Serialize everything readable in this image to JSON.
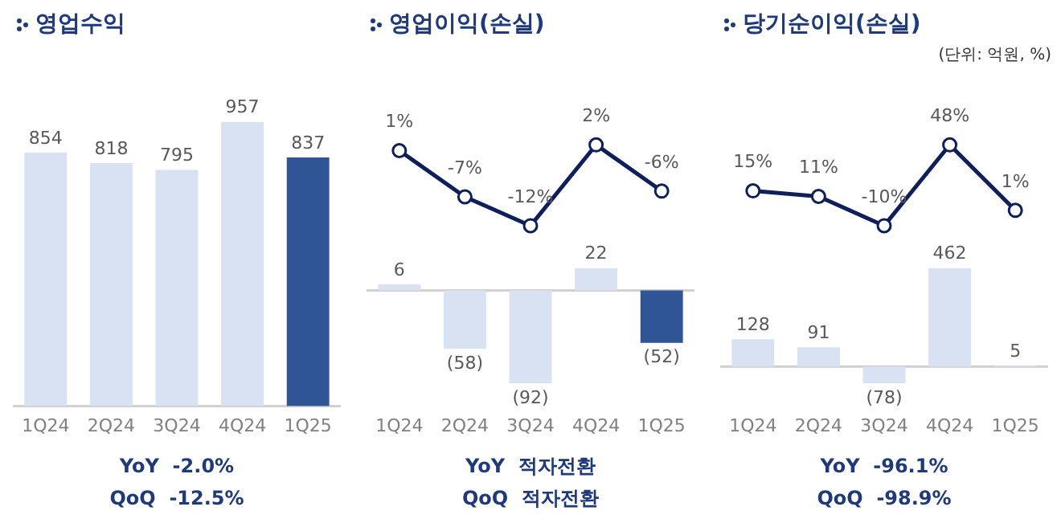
{
  "chart_data": [
    {
      "type": "bar",
      "title": "영업수익",
      "categories": [
        "1Q24",
        "2Q24",
        "3Q24",
        "4Q24",
        "1Q25"
      ],
      "tick_labels": "x",
      "values": [
        854,
        818,
        795,
        957,
        837
      ],
      "colors": [
        "#d9e2f3",
        "#d9e2f3",
        "#d9e2f3",
        "#d9e2f3",
        "#2f5597"
      ],
      "value_labels": [
        "854",
        "818",
        "795",
        "957",
        "837"
      ],
      "annotations": [
        "YoY  -2.0%",
        "QoQ  -12.5%"
      ]
    },
    {
      "type": "line",
      "title": "영업이익(손실)",
      "categories": [
        null,
        null,
        null,
        null,
        null
      ],
      "tick_labels": false,
      "marker": "circle",
      "color": "#0e1f5b",
      "values": [
        1,
        -7,
        -12,
        2,
        -6
      ],
      "value_labels": [
        "1%",
        "-7%",
        "-12%",
        "2%",
        "-6%"
      ]
    },
    {
      "type": "bar",
      "categories": [
        "1Q24",
        "2Q24",
        "3Q24",
        "4Q24",
        "1Q25"
      ],
      "tick_labels": "x",
      "values": [
        6,
        -58,
        -92,
        22,
        -52
      ],
      "colors": [
        "#d9e2f3",
        "#d9e2f3",
        "#d9e2f3",
        "#d9e2f3",
        "#2f5597"
      ],
      "value_labels": [
        "6",
        "(58)",
        "(92)",
        "22",
        "(52)"
      ],
      "annotations": [
        "YoY  적자전환",
        "QoQ  적자전환"
      ]
    },
    {
      "type": "line",
      "title": "당기순이익(손실)",
      "subtitle": "(단위: 억원, %)",
      "categories": [
        null,
        null,
        null,
        null,
        null
      ],
      "tick_labels": false,
      "marker": "circle",
      "color": "#0e1f5b",
      "values": [
        15,
        11,
        -10,
        48,
        1
      ],
      "value_labels": [
        "15%",
        "11%",
        "-10%",
        "48%",
        "1%"
      ]
    },
    {
      "type": "bar",
      "categories": [
        "1Q24",
        "2Q24",
        "3Q24",
        "4Q24",
        "1Q25"
      ],
      "tick_labels": "x",
      "values": [
        128,
        91,
        -78,
        462,
        5
      ],
      "colors": [
        "#d9e2f3",
        "#d9e2f3",
        "#d9e2f3",
        "#d9e2f3",
        "#d9e2f3"
      ],
      "value_labels": [
        "128",
        "91",
        "(78)",
        "462",
        "5"
      ],
      "annotations": [
        "YoY  -96.1%",
        "QoQ  -98.9%"
      ]
    }
  ]
}
